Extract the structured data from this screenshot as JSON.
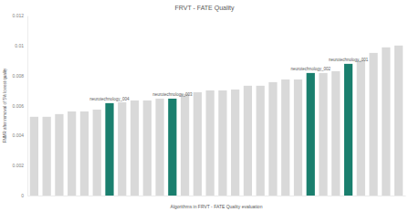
{
  "chart_data": {
    "type": "bar",
    "title": "FRVT - FATE Quality",
    "x_label": "Algorithms in FRVT - FATE Quality evaluation",
    "y_label": "FNMR after removal of 5% lowest quality",
    "categories": [
      null,
      null,
      null,
      null,
      null,
      null,
      "neurotechnology_004",
      null,
      null,
      null,
      null,
      "neurotechnology_003",
      null,
      null,
      null,
      null,
      null,
      null,
      null,
      null,
      null,
      null,
      "neurotechnology_002",
      null,
      null,
      "neurotechnology_001",
      null,
      null,
      null,
      null
    ],
    "values": [
      0.00525,
      0.00525,
      0.00543,
      0.00561,
      0.00561,
      0.00573,
      0.00616,
      0.00622,
      0.00634,
      0.00634,
      0.00646,
      0.00646,
      0.00677,
      0.00689,
      0.00701,
      0.00701,
      0.00707,
      0.00732,
      0.00732,
      0.00756,
      0.00774,
      0.00774,
      0.00817,
      0.00817,
      0.00829,
      0.00878,
      0.00902,
      0.00951,
      0.00988,
      0.01
    ],
    "colors": [
      "#d9d9d9",
      "#d9d9d9",
      "#d9d9d9",
      "#d9d9d9",
      "#d9d9d9",
      "#d9d9d9",
      "#1a7f6e",
      "#d9d9d9",
      "#d9d9d9",
      "#d9d9d9",
      "#d9d9d9",
      "#1a7f6e",
      "#d9d9d9",
      "#d9d9d9",
      "#d9d9d9",
      "#d9d9d9",
      "#d9d9d9",
      "#d9d9d9",
      "#d9d9d9",
      "#d9d9d9",
      "#d9d9d9",
      "#d9d9d9",
      "#1a7f6e",
      "#d9d9d9",
      "#d9d9d9",
      "#1a7f6e",
      "#d9d9d9",
      "#d9d9d9",
      "#d9d9d9",
      "#d9d9d9"
    ],
    "ylim": [
      0,
      0.012
    ],
    "yticks": [
      0,
      0.002,
      0.004,
      0.006,
      0.008,
      0.01,
      0.012
    ],
    "grid": false,
    "tick_labels": "y"
  }
}
